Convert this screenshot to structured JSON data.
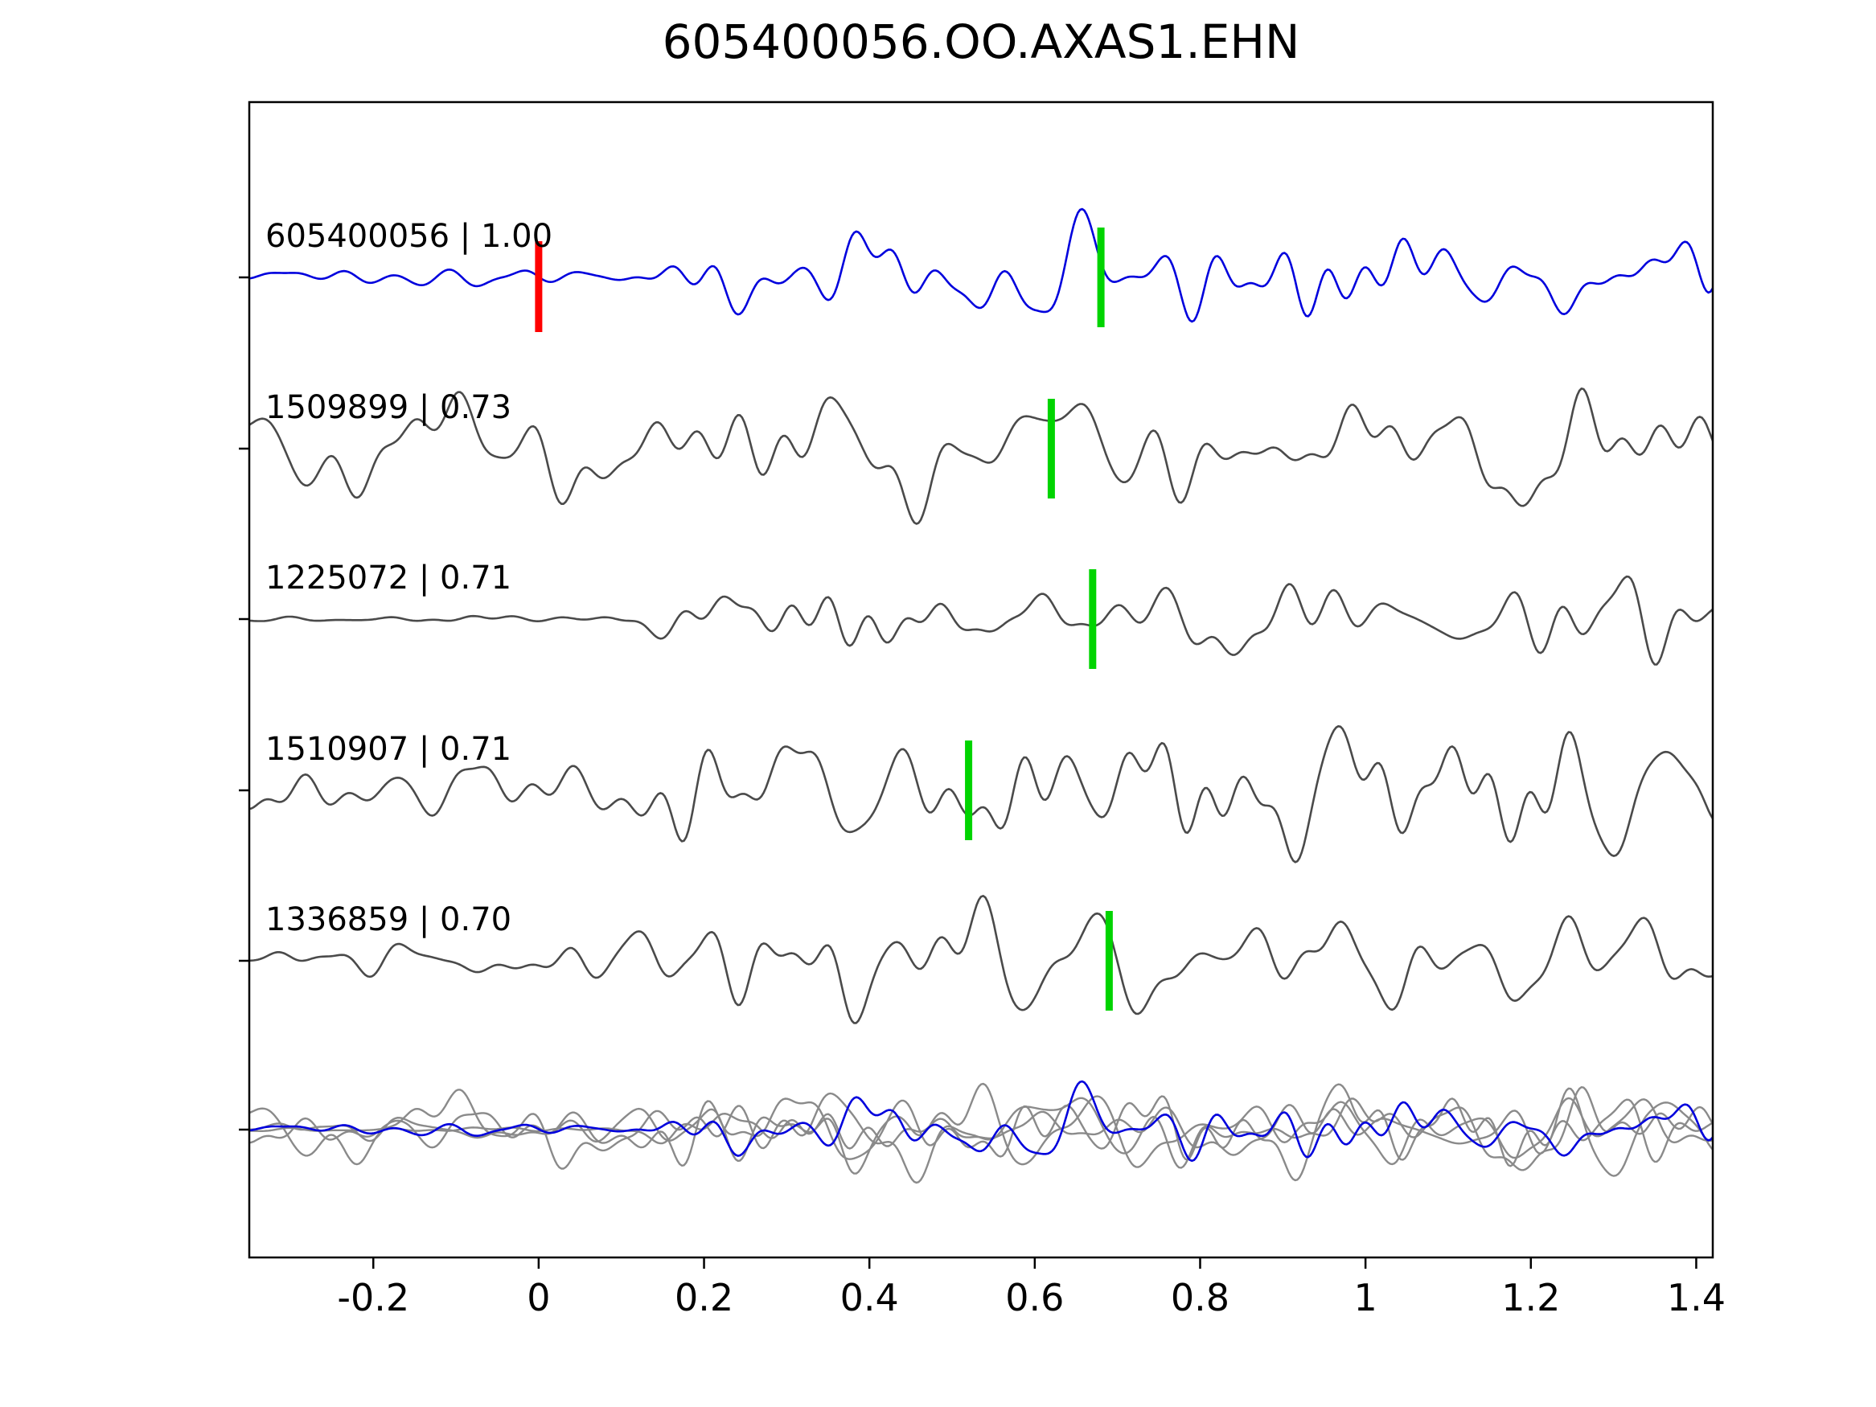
{
  "chart_data": {
    "type": "line",
    "title": "605400056.OO.AXAS1.EHN",
    "xlabel": "",
    "ylabel": "",
    "xlim": [
      -0.35,
      1.42
    ],
    "x_ticks": [
      -0.2,
      0,
      0.2,
      0.4,
      0.6,
      0.8,
      1,
      1.2,
      1.4
    ],
    "x_tick_labels": [
      "-0.2",
      "0",
      "0.2",
      "0.4",
      "0.6",
      "0.8",
      "1",
      "1.2",
      "1.4"
    ],
    "grid": false,
    "legend": "none",
    "colors": {
      "primary_trace": "#0000dd",
      "template_trace": "#4a4a4a",
      "overlay_trace": "#8a8a8a",
      "pick_marker": "#00d400",
      "origin_marker": "#ff0000",
      "axis": "#000000",
      "text": "#000000"
    },
    "traces": [
      {
        "id": "605400056",
        "correlation": "1.00",
        "label": "605400056 | 1.00",
        "color_role": "primary",
        "pick_x": 0.68,
        "origin_x": 0.0,
        "seed": 11,
        "onset": 0.02,
        "pre_amp": 0.18,
        "amp": 1.0
      },
      {
        "id": "1509899",
        "correlation": "0.73",
        "label": "1509899 | 0.73",
        "color_role": "template",
        "pick_x": 0.62,
        "seed": 27,
        "onset": -0.25,
        "pre_amp": 0.8,
        "amp": 1.1
      },
      {
        "id": "1225072",
        "correlation": "0.71",
        "label": "1225072 | 0.71",
        "color_role": "template",
        "pick_x": 0.67,
        "seed": 33,
        "onset": 0.05,
        "pre_amp": 0.12,
        "amp": 1.0
      },
      {
        "id": "1510907",
        "correlation": "0.71",
        "label": "1510907 | 0.71",
        "color_role": "template",
        "pick_x": 0.52,
        "seed": 44,
        "onset": -0.15,
        "pre_amp": 0.5,
        "amp": 1.05
      },
      {
        "id": "1336859",
        "correlation": "0.70",
        "label": "1336859 | 0.70",
        "color_role": "template",
        "pick_x": 0.69,
        "seed": 58,
        "onset": 0.0,
        "pre_amp": 0.4,
        "amp": 0.95
      }
    ],
    "overlay_row": {
      "description": "all traces superimposed",
      "highlight_id": "605400056"
    }
  }
}
